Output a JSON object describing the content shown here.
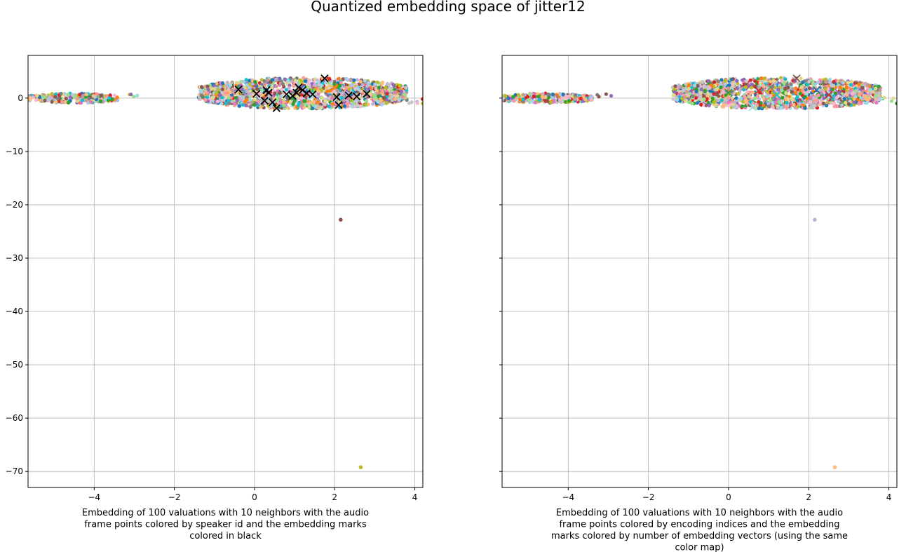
{
  "figure": {
    "title": "Quantized embedding space of jitter12"
  },
  "chart_data": [
    {
      "type": "scatter",
      "title": "",
      "xlabel_lines": [
        "Embedding of 100 valuations with 10 neighbors with the audio",
        "frame points colored by speaker id and the embedding marks",
        "colored in black"
      ],
      "ylabel": "",
      "xlim": [
        -5.65,
        4.2
      ],
      "ylim": [
        -73,
        8
      ],
      "x_ticks": [
        -4,
        -2,
        0,
        2,
        4
      ],
      "y_ticks": [
        0,
        -10,
        -20,
        -30,
        -40,
        -50,
        -60,
        -70
      ],
      "grid": true,
      "legend": "none",
      "point_clusters": [
        {
          "x_range": [
            -5.65,
            -3.4
          ],
          "y_range": [
            -0.9,
            0.9
          ],
          "count": 260
        },
        {
          "x_range": [
            -3.4,
            -2.9
          ],
          "y_range": [
            0.2,
            0.8
          ],
          "count": 4
        },
        {
          "x_range": [
            -1.4,
            3.8
          ],
          "y_range": [
            -2.0,
            3.8
          ],
          "count": 1500
        },
        {
          "x_range": [
            3.6,
            4.2
          ],
          "y_range": [
            -1.1,
            0.4
          ],
          "count": 6
        }
      ],
      "outlier_points": [
        {
          "x": 2.15,
          "y": -22.8,
          "color": "#8c564b"
        },
        {
          "x": 2.65,
          "y": -69.2,
          "color": "#bcbd22"
        },
        {
          "x": 4.2,
          "y": -1.0,
          "color": "#bcbd22"
        }
      ],
      "point_colors": [
        "#1f77b4",
        "#ff7f0e",
        "#2ca02c",
        "#d62728",
        "#9467bd",
        "#8c564b",
        "#e377c2",
        "#7f7f7f",
        "#bcbd22",
        "#17becf",
        "#aec7e8",
        "#ffbb78",
        "#98df8a",
        "#ff9896",
        "#c5b0d5",
        "#c49c94",
        "#f7b6d2",
        "#c7c7c7",
        "#dbdb8d",
        "#9edae5"
      ],
      "embedding_marks": {
        "marker": "x",
        "color": "#000000",
        "points": [
          {
            "x": -0.4,
            "y": 1.6
          },
          {
            "x": 0.05,
            "y": 0.8
          },
          {
            "x": 0.25,
            "y": -0.5
          },
          {
            "x": 0.3,
            "y": 1.5
          },
          {
            "x": 0.35,
            "y": 1.0
          },
          {
            "x": 0.45,
            "y": -0.8
          },
          {
            "x": 0.55,
            "y": -1.9
          },
          {
            "x": 0.8,
            "y": 0.7
          },
          {
            "x": 0.95,
            "y": 0.4
          },
          {
            "x": 1.05,
            "y": 1.0
          },
          {
            "x": 1.1,
            "y": 2.0
          },
          {
            "x": 1.2,
            "y": 1.5
          },
          {
            "x": 1.3,
            "y": 0.9
          },
          {
            "x": 1.45,
            "y": 0.7
          },
          {
            "x": 1.75,
            "y": 3.7
          },
          {
            "x": 2.05,
            "y": 0.2
          },
          {
            "x": 2.1,
            "y": -1.3
          },
          {
            "x": 2.35,
            "y": 0.5
          },
          {
            "x": 2.55,
            "y": 0.3
          },
          {
            "x": 2.8,
            "y": 0.8
          }
        ]
      }
    },
    {
      "type": "scatter",
      "title": "",
      "xlabel_lines": [
        "Embedding of 100 valuations with 10 neighbors with the audio",
        "frame points colored by encoding indices and the embedding",
        "marks colored by number of embedding vectors (using the same",
        "color map)"
      ],
      "ylabel": "",
      "xlim": [
        -5.65,
        4.2
      ],
      "ylim": [
        -73,
        8
      ],
      "x_ticks": [
        -4,
        -2,
        0,
        2,
        4
      ],
      "y_ticks": [
        0,
        -10,
        -20,
        -30,
        -40,
        -50,
        -60,
        -70
      ],
      "y_tick_labels_shown": false,
      "grid": true,
      "legend": "none",
      "point_clusters": [
        {
          "x_range": [
            -5.65,
            -3.4
          ],
          "y_range": [
            -0.9,
            0.9
          ],
          "count": 260
        },
        {
          "x_range": [
            -3.4,
            -2.9
          ],
          "y_range": [
            0.2,
            0.8
          ],
          "count": 4
        },
        {
          "x_range": [
            -1.4,
            3.8
          ],
          "y_range": [
            -2.0,
            3.8
          ],
          "count": 1500
        },
        {
          "x_range": [
            3.6,
            4.2
          ],
          "y_range": [
            -1.1,
            0.4
          ],
          "count": 6
        }
      ],
      "outlier_points": [
        {
          "x": 2.15,
          "y": -22.8,
          "color": "#c5b0d5"
        },
        {
          "x": 2.65,
          "y": -69.2,
          "color": "#ffbb78"
        },
        {
          "x": 4.2,
          "y": -1.0,
          "color": "#2ca02c"
        }
      ],
      "point_colors": [
        "#1f77b4",
        "#ff7f0e",
        "#2ca02c",
        "#d62728",
        "#9467bd",
        "#8c564b",
        "#e377c2",
        "#7f7f7f",
        "#bcbd22",
        "#17becf",
        "#aec7e8",
        "#ffbb78",
        "#98df8a",
        "#ff9896",
        "#c5b0d5",
        "#c49c94",
        "#f7b6d2",
        "#c7c7c7",
        "#dbdb8d",
        "#9edae5"
      ],
      "embedding_marks": {
        "marker": "x",
        "color": "mixed",
        "points": [
          {
            "x": 0.0,
            "y": 1.0,
            "color": "#2ca02c"
          },
          {
            "x": 0.5,
            "y": 0.4,
            "color": "#ffbb78"
          },
          {
            "x": 0.75,
            "y": 1.4,
            "color": "#d62728"
          },
          {
            "x": 1.05,
            "y": 2.0,
            "color": "#7f7f7f"
          },
          {
            "x": 1.2,
            "y": 0.6,
            "color": "#17becf"
          },
          {
            "x": 1.7,
            "y": 3.7,
            "color": "#8c564b"
          },
          {
            "x": 2.05,
            "y": -1.4,
            "color": "#c5b0d5"
          },
          {
            "x": 2.2,
            "y": 1.5,
            "color": "#1f77b4"
          },
          {
            "x": 2.5,
            "y": 0.6,
            "color": "#d62728"
          },
          {
            "x": 2.75,
            "y": 1.0,
            "color": "#9467bd"
          },
          {
            "x": 0.6,
            "y": -1.7,
            "color": "#9edae5"
          }
        ]
      }
    }
  ]
}
